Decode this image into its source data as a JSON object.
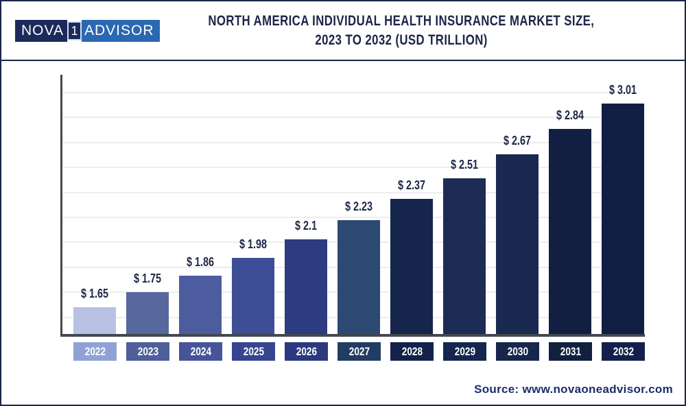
{
  "header": {
    "logo": {
      "part_nova": "NOVA",
      "part_one": "1",
      "part_advisor": "ADVISOR"
    },
    "title_line1": "NORTH AMERICA INDIVIDUAL HEALTH INSURANCE MARKET SIZE,",
    "title_line2": "2023 TO 2032 (USD TRILLION)"
  },
  "footer": {
    "source": "Source: www.novaoneadvisor.com"
  },
  "chart_data": {
    "type": "bar",
    "title": "North America Individual Health Insurance Market Size, 2023 to 2032 (USD Trillion)",
    "unit": "USD Trillion",
    "categories": [
      "2022",
      "2023",
      "2024",
      "2025",
      "2026",
      "2027",
      "2028",
      "2029",
      "2030",
      "2031",
      "2032"
    ],
    "values": [
      1.65,
      1.75,
      1.86,
      1.98,
      2.1,
      2.23,
      2.37,
      2.51,
      2.67,
      2.84,
      3.01
    ],
    "value_labels": [
      "$ 1.65",
      "$ 1.75",
      "$ 1.86",
      "$ 1.98",
      "$ 2.1",
      "$ 2.23",
      "$ 2.37",
      "$ 2.51",
      "$ 2.67",
      "$ 2.84",
      "$ 3.01"
    ],
    "xlabel": "",
    "ylabel": "",
    "ylim": [
      1.47,
      3.2
    ],
    "grid": "horizontal",
    "legend": "none",
    "bar_colors": [
      "#b6c1e3",
      "#57689f",
      "#4c5c9e",
      "#3d4d96",
      "#2d3b81",
      "#2b4972",
      "#15254c",
      "#1c2c55",
      "#1a2950",
      "#131f42",
      "#101e44"
    ],
    "tick_box_colors": [
      "#8fa2d4",
      "#4e5f9a",
      "#46559a",
      "#36458f",
      "#2b3a7e",
      "#223d63",
      "#12224a",
      "#15264e",
      "#16264c",
      "#10203f",
      "#13214a"
    ]
  },
  "colors": {
    "frame": "#1c2548",
    "title_text": "#1c2548",
    "axis": "#43474e",
    "gridline": "#ededed",
    "value_label_text": "#1d2647",
    "year_label_text": "#ffffff",
    "source_text": "#1b2d69",
    "logo_navy": "#1b2a5a",
    "logo_blue": "#2a68b2"
  }
}
